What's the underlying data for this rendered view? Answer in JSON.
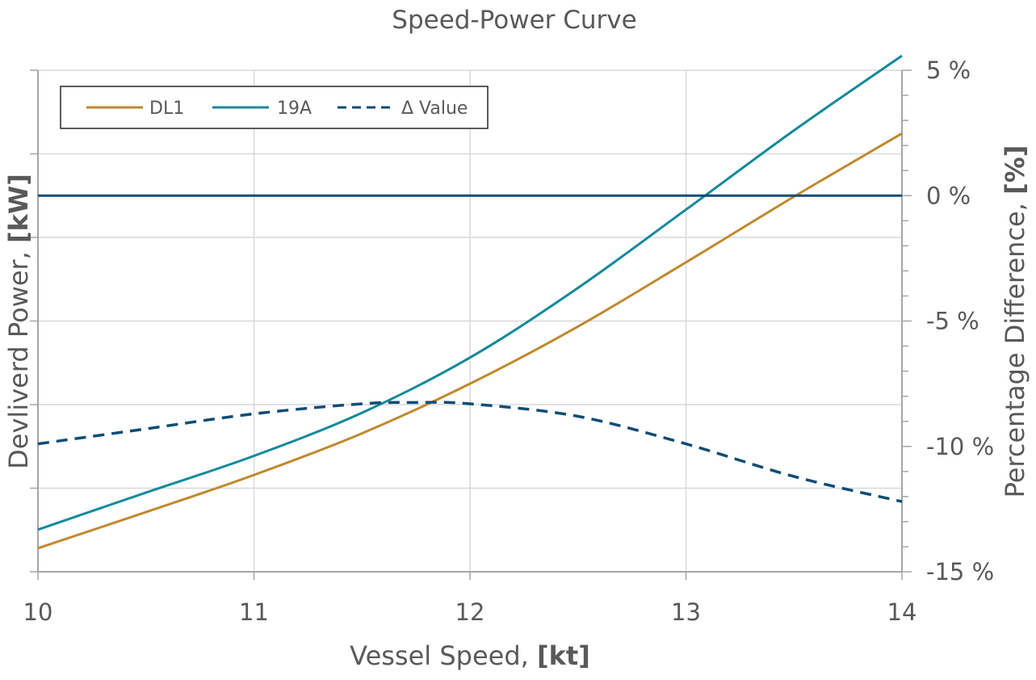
{
  "chart_data": {
    "type": "line",
    "title": "Speed-Power Curve",
    "xlabel": {
      "text": "Vessel Speed, ",
      "unit": "[kt]"
    },
    "ylabel_left": {
      "text": "Devliverd Power, ",
      "unit": "[kW]"
    },
    "ylabel_right": {
      "text": "Percentage Difference, ",
      "unit": "[%]"
    },
    "xlim": [
      10,
      14
    ],
    "x_ticks": [
      "10",
      "11",
      "12",
      "13",
      "14"
    ],
    "y_left_range": [
      0,
      1
    ],
    "y_left_grid_count": 6,
    "y_right_lim": [
      -15,
      5
    ],
    "y_right_ticks": [
      {
        "value": 5,
        "label": "5 %"
      },
      {
        "value": 0,
        "label": "0 %"
      },
      {
        "value": -5,
        "label": "-5 %"
      },
      {
        "value": -10,
        "label": "-10 %"
      },
      {
        "value": -15,
        "label": "-15 %"
      }
    ],
    "y_right_minor_step": 1,
    "grid": true,
    "legend_position": "top-left",
    "series": [
      {
        "name": "DL1",
        "axis": "left",
        "color": "#c0892e",
        "dash": "solid",
        "x": [
          10,
          10.5,
          11,
          11.5,
          12,
          12.5,
          13,
          13.5,
          14
        ],
        "y": [
          0.047,
          0.119,
          0.193,
          0.276,
          0.375,
          0.489,
          0.617,
          0.748,
          0.874
        ]
      },
      {
        "name": "19A",
        "axis": "left",
        "color": "#13899b",
        "dash": "solid",
        "x": [
          10,
          10.5,
          11,
          11.5,
          12,
          12.5,
          13,
          13.5,
          14
        ],
        "y": [
          0.084,
          0.158,
          0.231,
          0.317,
          0.427,
          0.566,
          0.722,
          0.88,
          1.029
        ]
      },
      {
        "name": "Δ Value",
        "axis": "right",
        "color": "#0f4d75",
        "dash": "dashed",
        "x": [
          10,
          10.5,
          11,
          11.5,
          11.75,
          12,
          12.5,
          13,
          13.5,
          14
        ],
        "y": [
          -9.9,
          -9.3,
          -8.7,
          -8.3,
          -8.25,
          -8.3,
          -8.8,
          -9.9,
          -11.2,
          -12.2
        ]
      },
      {
        "name": "",
        "axis": "right",
        "color": "#0f4d75",
        "dash": "solid",
        "show_in_legend": false,
        "x": [
          10,
          14
        ],
        "y": [
          0,
          0
        ]
      }
    ]
  }
}
